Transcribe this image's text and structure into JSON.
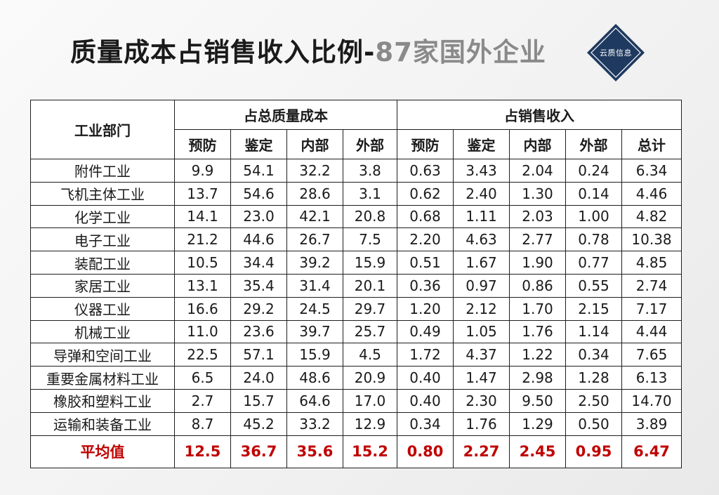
{
  "title": {
    "main": "质量成本占销售收入比例-",
    "sub": "87家国外企业"
  },
  "logo": {
    "text": "云质信息",
    "color": "#1f3a60"
  },
  "table": {
    "dept_header": "工业部门",
    "group1": "占总质量成本",
    "group2": "占销售收入",
    "sub_headers": [
      "预防",
      "鉴定",
      "内部",
      "外部",
      "预防",
      "鉴定",
      "内部",
      "外部",
      "总计"
    ],
    "rows": [
      {
        "dept": "附件工业",
        "values": [
          "9.9",
          "54.1",
          "32.2",
          "3.8",
          "0.63",
          "3.43",
          "2.04",
          "0.24",
          "6.34"
        ]
      },
      {
        "dept": "飞机主体工业",
        "values": [
          "13.7",
          "54.6",
          "28.6",
          "3.1",
          "0.62",
          "2.40",
          "1.30",
          "0.14",
          "4.46"
        ]
      },
      {
        "dept": "化学工业",
        "values": [
          "14.1",
          "23.0",
          "42.1",
          "20.8",
          "0.68",
          "1.11",
          "2.03",
          "1.00",
          "4.82"
        ]
      },
      {
        "dept": "电子工业",
        "values": [
          "21.2",
          "44.6",
          "26.7",
          "7.5",
          "2.20",
          "4.63",
          "2.77",
          "0.78",
          "10.38"
        ]
      },
      {
        "dept": "装配工业",
        "values": [
          "10.5",
          "34.4",
          "39.2",
          "15.9",
          "0.51",
          "1.67",
          "1.90",
          "0.77",
          "4.85"
        ]
      },
      {
        "dept": "家居工业",
        "values": [
          "13.1",
          "35.4",
          "31.4",
          "20.1",
          "0.36",
          "0.97",
          "0.86",
          "0.55",
          "2.74"
        ]
      },
      {
        "dept": "仪器工业",
        "values": [
          "16.6",
          "29.2",
          "24.5",
          "29.7",
          "1.20",
          "2.12",
          "1.70",
          "2.15",
          "7.17"
        ]
      },
      {
        "dept": "机械工业",
        "values": [
          "11.0",
          "23.6",
          "39.7",
          "25.7",
          "0.49",
          "1.05",
          "1.76",
          "1.14",
          "4.44"
        ]
      },
      {
        "dept": "导弹和空间工业",
        "values": [
          "22.5",
          "57.1",
          "15.9",
          "4.5",
          "1.72",
          "4.37",
          "1.22",
          "0.34",
          "7.65"
        ]
      },
      {
        "dept": "重要金属材料工业",
        "values": [
          "6.5",
          "24.0",
          "48.6",
          "20.9",
          "0.40",
          "1.47",
          "2.98",
          "1.28",
          "6.13"
        ]
      },
      {
        "dept": "橡胶和塑料工业",
        "values": [
          "2.7",
          "15.7",
          "64.6",
          "17.0",
          "0.40",
          "2.30",
          "9.50",
          "2.50",
          "14.70"
        ]
      },
      {
        "dept": "运输和装备工业",
        "values": [
          "8.7",
          "45.2",
          "33.2",
          "12.9",
          "0.34",
          "1.76",
          "1.29",
          "0.50",
          "3.89"
        ]
      }
    ],
    "average": {
      "label": "平均值",
      "values": [
        "12.5",
        "36.7",
        "35.6",
        "15.2",
        "0.80",
        "2.27",
        "2.45",
        "0.95",
        "6.47"
      ]
    },
    "average_color": "#c00000"
  }
}
